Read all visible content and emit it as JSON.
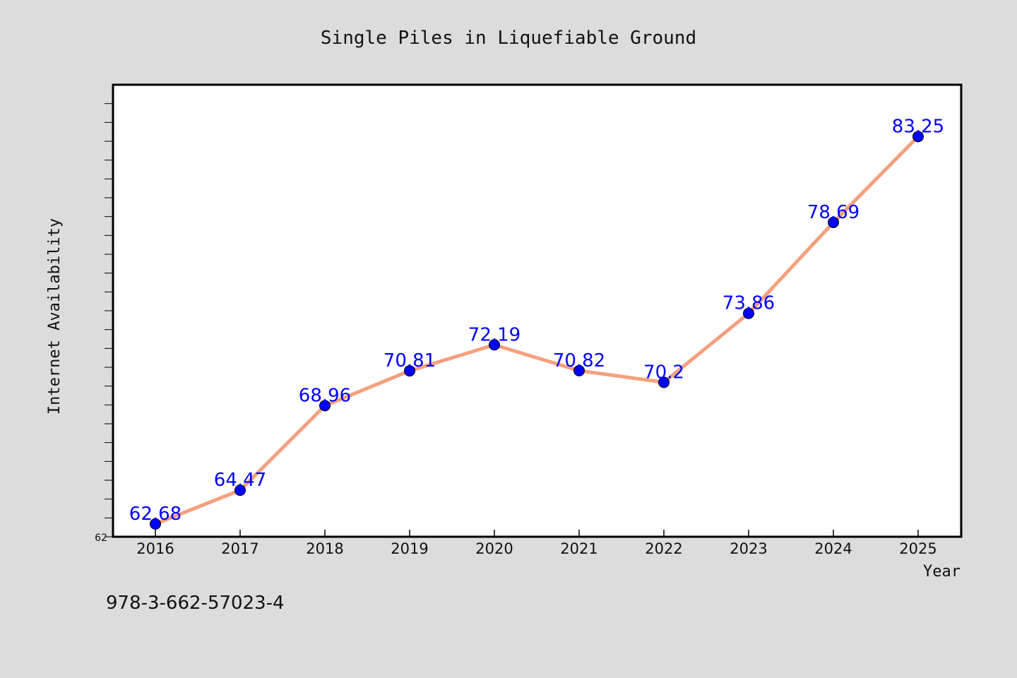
{
  "chart_data": {
    "type": "line",
    "title": "Single Piles in Liquefiable Ground",
    "xlabel": "Year",
    "ylabel": "Internet Availability",
    "categories": [
      "2016",
      "2017",
      "2018",
      "2019",
      "2020",
      "2021",
      "2022",
      "2023",
      "2024",
      "2025"
    ],
    "series": [
      {
        "values": [
          62.68,
          64.47,
          68.96,
          70.81,
          72.19,
          70.82,
          70.2,
          73.86,
          78.69,
          83.25
        ],
        "line_color": "#f4a07e",
        "marker_color": "#0000ff"
      }
    ],
    "data_labels": [
      "62.68",
      "64.47",
      "68.96",
      "70.81",
      "72.19",
      "70.82",
      "70.2",
      "73.86",
      "78.69",
      "83.25"
    ],
    "yticks": [
      "62"
    ],
    "ylim": [
      62,
      86
    ],
    "grid": false,
    "legend": "none"
  },
  "footer": {
    "isbn": "978-3-662-57023-4"
  },
  "colors": {
    "background": "#dcdcdc",
    "plot_background": "#ffffff"
  }
}
